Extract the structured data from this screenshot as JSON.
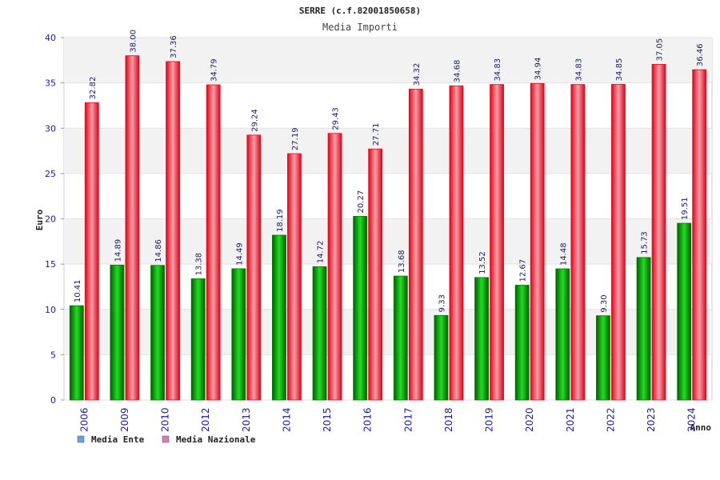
{
  "chart_data": {
    "type": "bar",
    "title": "SERRE (c.f.82001850658)",
    "subtitle": "Media Importi",
    "xlabel": "Anno",
    "ylabel": "Euro",
    "ylim": [
      0,
      40
    ],
    "yticks": [
      0,
      5,
      10,
      15,
      20,
      25,
      30,
      35,
      40
    ],
    "categories": [
      "2006",
      "2009",
      "2010",
      "2012",
      "2013",
      "2014",
      "2015",
      "2016",
      "2017",
      "2018",
      "2019",
      "2020",
      "2021",
      "2022",
      "2023",
      "2024"
    ],
    "series": [
      {
        "name": "Media Ente",
        "values": [
          10.41,
          14.89,
          14.86,
          13.38,
          14.49,
          18.19,
          14.72,
          20.27,
          13.68,
          9.33,
          13.52,
          12.67,
          14.48,
          9.3,
          15.73,
          19.51
        ],
        "labels": [
          "10.41",
          "14.89",
          "14.86",
          "13.38",
          "14.49",
          "18.19",
          "14.72",
          "20.27",
          "13.68",
          "9.33",
          "13.52",
          "12.67",
          "14.48",
          "9.30",
          "15.73",
          "19.51"
        ]
      },
      {
        "name": "Media Nazionale",
        "values": [
          32.82,
          38.0,
          37.36,
          34.79,
          29.24,
          27.19,
          29.43,
          27.71,
          34.32,
          34.68,
          34.83,
          34.94,
          34.83,
          34.85,
          37.05,
          36.46
        ],
        "labels": [
          "32.82",
          "38.00",
          "37.36",
          "34.79",
          "29.24",
          "27.19",
          "29.43",
          "27.71",
          "34.32",
          "34.68",
          "34.83",
          "34.94",
          "34.83",
          "34.85",
          "37.05",
          "36.46"
        ]
      }
    ],
    "legend_position": "bottom-left",
    "grid": true,
    "colors": {
      "ente_bar": "#00b000",
      "nazionale_bar": "#ee1c2a",
      "ente_legend": "#66a3e0",
      "nazionale_legend": "#e07ab0",
      "band": "#f2f2f2",
      "axis_text": "#1a1aa8"
    }
  }
}
